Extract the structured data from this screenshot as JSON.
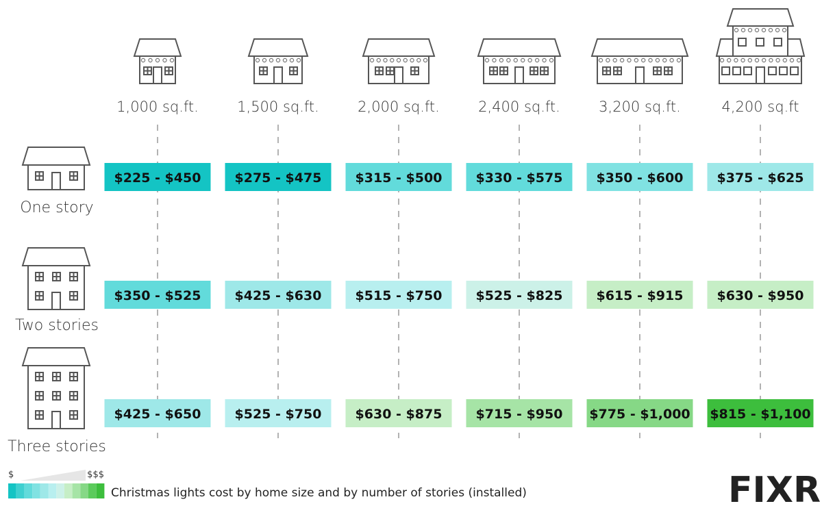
{
  "chart_data": {
    "type": "table",
    "title": "",
    "caption": "Christmas lights cost by home size and by number of stories (installed)",
    "columns": [
      "1,000 sq.ft.",
      "1,500 sq.ft.",
      "2,000 sq.ft.",
      "2,400 sq.ft.",
      "3,200 sq.ft.",
      "4,200 sq.ft"
    ],
    "rows": [
      {
        "label": "One story",
        "cells": [
          "$225 - $450",
          "$275 - $475",
          "$315 - $500",
          "$330 - $575",
          "$350 - $600",
          "$375 - $625"
        ],
        "levels": [
          0,
          0,
          2,
          2,
          3,
          4
        ]
      },
      {
        "label": "Two stories",
        "cells": [
          "$350 - $525",
          "$425 - $630",
          "$515 - $750",
          "$525 - $825",
          "$615 - $915",
          "$630 - $950"
        ],
        "levels": [
          2,
          4,
          5,
          6,
          7,
          7
        ]
      },
      {
        "label": "Three stories",
        "cells": [
          "$425 - $650",
          "$525 - $750",
          "$630 - $875",
          "$715 - $950",
          "$775 - $1,000",
          "$815 - $1,100"
        ],
        "levels": [
          4,
          5,
          7,
          8,
          9,
          11
        ]
      }
    ],
    "legend": {
      "low_label": "$",
      "high_label": "$$$"
    },
    "color_scale": [
      "#14c4c4",
      "#3fd0d0",
      "#62dbdb",
      "#80e2e2",
      "#9ee8e8",
      "#b8efef",
      "#ccf1e8",
      "#c6eec6",
      "#a6e4a6",
      "#86d886",
      "#5ccb5c",
      "#3dbe3d"
    ]
  },
  "logo": {
    "text": "FIXR"
  }
}
